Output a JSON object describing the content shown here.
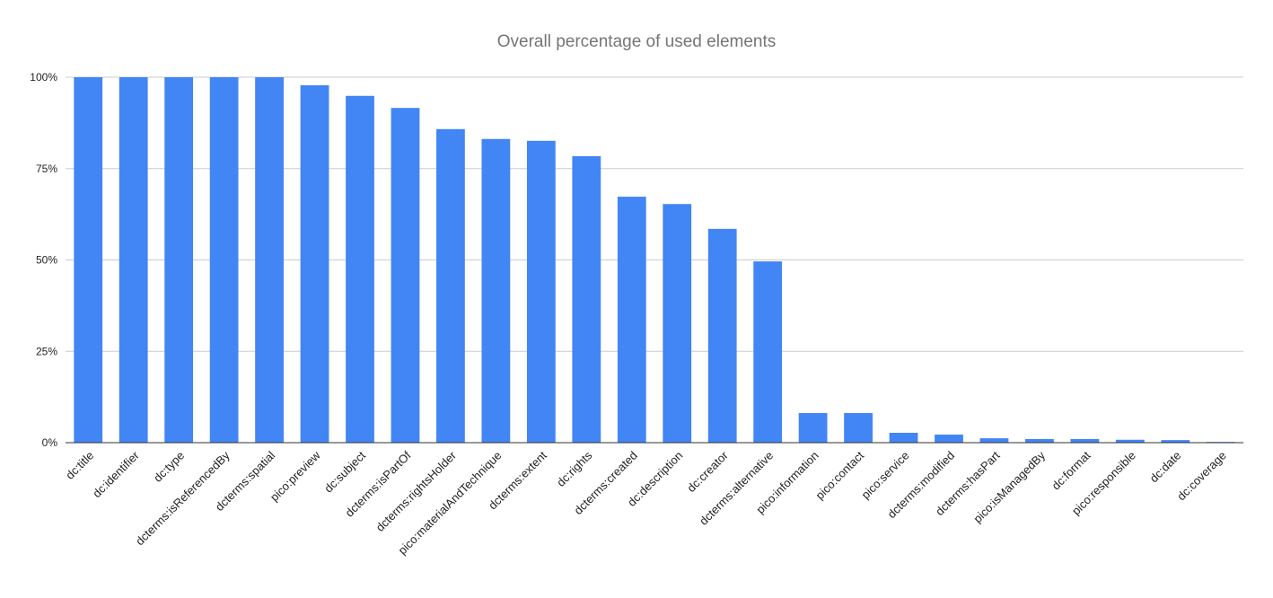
{
  "chart_data": {
    "type": "bar",
    "title": "Overall percentage of used elements",
    "xlabel": "",
    "ylabel": "",
    "categories": [
      "dc:title",
      "dc:identifier",
      "dc:type",
      "dcterms:isReferencedBy",
      "dcterms:spatial",
      "pico:preview",
      "dc:subject",
      "dcterms:isPartOf",
      "dcterms:rightsHolder",
      "pico:materialAndTechnique",
      "dcterms:extent",
      "dc:rights",
      "dcterms:created",
      "dc:description",
      "dc:creator",
      "dcterms:alternative",
      "pico:information",
      "pico:contact",
      "pico:service",
      "dcterms:modified",
      "dcterms:hasPart",
      "pico:isManagedBy",
      "dc:format",
      "pico:responsible",
      "dc:date",
      "dc:coverage"
    ],
    "values": [
      100,
      100,
      100,
      100,
      100,
      97.8,
      94.9,
      91.6,
      85.8,
      83.1,
      82.6,
      78.4,
      67.3,
      65.3,
      58.5,
      49.6,
      8.1,
      8.1,
      2.7,
      2.2,
      1.2,
      1.0,
      1.0,
      0.8,
      0.7,
      0.2
    ],
    "ylim": [
      0,
      100
    ],
    "yticks": [
      0,
      25,
      50,
      75,
      100
    ],
    "ytick_labels": [
      "0%",
      "25%",
      "50%",
      "75%",
      "100%"
    ],
    "grid": true,
    "legend": "none",
    "colors": {
      "bar": "#4285f4",
      "title": "#757575",
      "tick_label": "#222222",
      "grid": "#cccccc",
      "axis": "#333333"
    }
  }
}
